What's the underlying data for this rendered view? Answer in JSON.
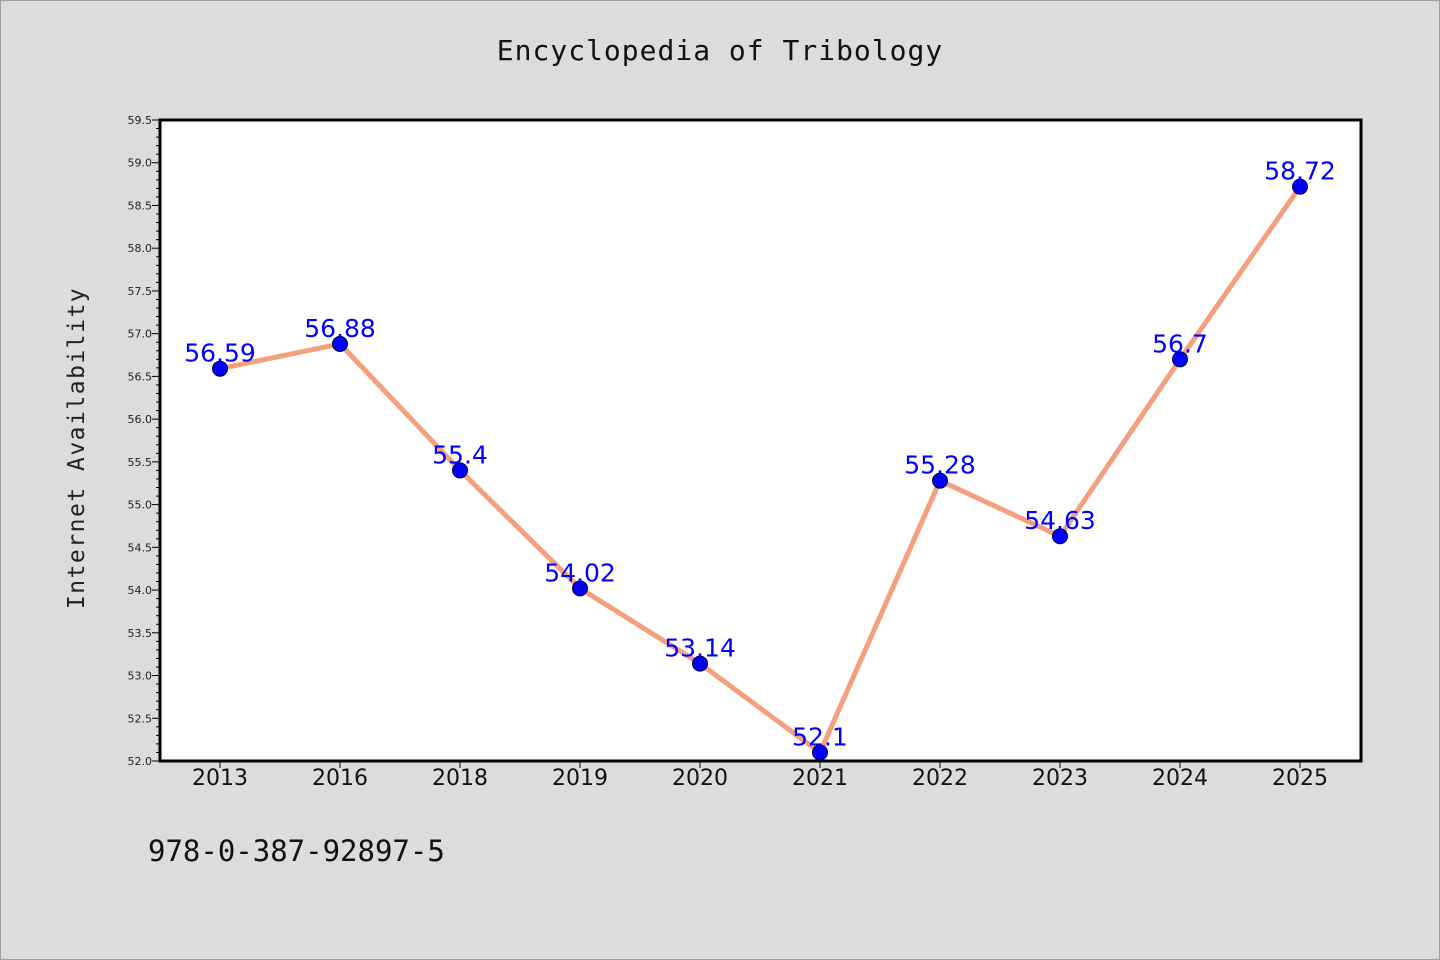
{
  "chart_data": {
    "type": "line",
    "title": "Encyclopedia of Tribology",
    "xlabel": "",
    "ylabel": "Internet Availability",
    "categories": [
      "2013",
      "2016",
      "2018",
      "2019",
      "2020",
      "2021",
      "2022",
      "2023",
      "2024",
      "2025"
    ],
    "series": [
      {
        "values": [
          56.59,
          56.88,
          55.4,
          54.02,
          53.14,
          52.1,
          55.28,
          54.63,
          56.7,
          58.72
        ]
      }
    ],
    "data_labels": [
      "56.59",
      "56.88",
      "55.4",
      "54.02",
      "53.14",
      "52.1",
      "55.28",
      "54.63",
      "56.7",
      "58.72"
    ],
    "ylim": [
      52.0,
      59.5
    ],
    "yticks": [
      "52.0",
      "52.5",
      "53.0",
      "53.5",
      "54.0",
      "54.5",
      "55.0",
      "55.5",
      "56.0",
      "56.5",
      "57.0",
      "57.5",
      "58.0",
      "58.5",
      "59.0",
      "59.5"
    ],
    "grid": false,
    "legend": "none",
    "colors": {
      "line": "#f4a07e",
      "marker": "#0000ff",
      "label": "#0000ff",
      "background": "#dcdcdc",
      "plot_background": "#ffffff"
    }
  },
  "footer": {
    "code": "978-0-387-92897-5"
  }
}
